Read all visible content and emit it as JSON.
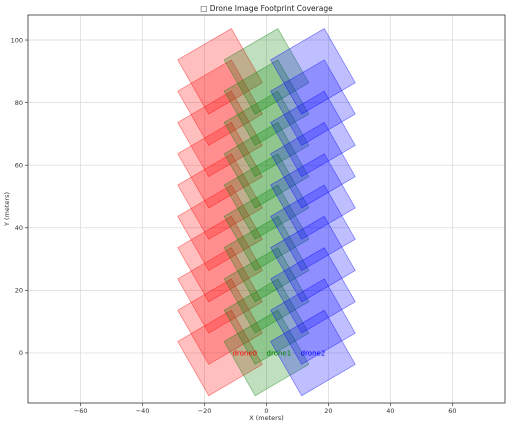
{
  "chart_data": {
    "type": "scatter",
    "title": "□ Drone Image Footprint Coverage",
    "xlabel": "X (meters)",
    "ylabel": "Y (meters)",
    "xlim": [
      -77,
      77
    ],
    "ylim": [
      -16,
      108
    ],
    "x_ticks": [
      -60,
      -40,
      -20,
      0,
      20,
      40,
      60
    ],
    "y_ticks": [
      0,
      20,
      40,
      60,
      80,
      100
    ],
    "x_tick_labels": [
      "−60",
      "−40",
      "−20",
      "0",
      "20",
      "40",
      "60"
    ],
    "y_tick_labels": [
      "0",
      "20",
      "40",
      "60",
      "80",
      "100"
    ],
    "grid": true,
    "footprint": {
      "width": 20,
      "height": 20,
      "rotation_deg": 30
    },
    "series": [
      {
        "name": "drone0",
        "color": "#ff0000",
        "centers": [
          [
            -15,
            0
          ],
          [
            -15,
            10
          ],
          [
            -15,
            20
          ],
          [
            -15,
            30
          ],
          [
            -15,
            40
          ],
          [
            -15,
            50
          ],
          [
            -15,
            60
          ],
          [
            -15,
            70
          ],
          [
            -15,
            80
          ],
          [
            -15,
            90
          ]
        ],
        "label_position": [
          -7,
          0
        ]
      },
      {
        "name": "drone1",
        "color": "#008000",
        "centers": [
          [
            0,
            0
          ],
          [
            0,
            10
          ],
          [
            0,
            20
          ],
          [
            0,
            30
          ],
          [
            0,
            40
          ],
          [
            0,
            50
          ],
          [
            0,
            60
          ],
          [
            0,
            70
          ],
          [
            0,
            80
          ],
          [
            0,
            90
          ]
        ],
        "label_position": [
          4,
          0
        ]
      },
      {
        "name": "drone2",
        "color": "#0000ff",
        "centers": [
          [
            15,
            0
          ],
          [
            15,
            10
          ],
          [
            15,
            20
          ],
          [
            15,
            30
          ],
          [
            15,
            40
          ],
          [
            15,
            50
          ],
          [
            15,
            60
          ],
          [
            15,
            70
          ],
          [
            15,
            80
          ],
          [
            15,
            90
          ]
        ],
        "label_position": [
          15,
          0
        ]
      }
    ]
  }
}
